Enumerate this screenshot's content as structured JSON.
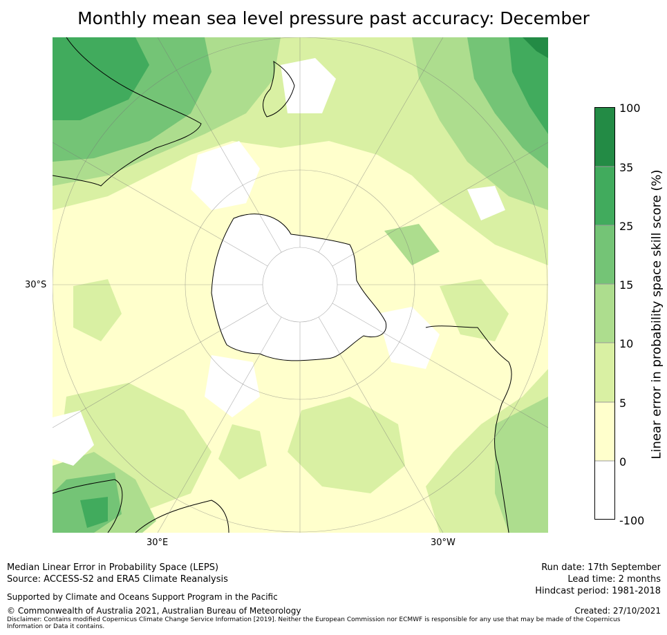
{
  "title": "Monthly mean sea level pressure past accuracy: December",
  "map_labels": {
    "lat_30s": "30°S",
    "lon_30e": "30°E",
    "lon_30w": "30°W"
  },
  "colorbar": {
    "title": "Linear error in probability space skill score (%)",
    "ticks": [
      "100",
      "35",
      "25",
      "15",
      "10",
      "5",
      "0",
      "-100"
    ],
    "bins": [
      {
        "range": "35 to 100",
        "color": "#238b45"
      },
      {
        "range": "25 to 35",
        "color": "#41ab5d"
      },
      {
        "range": "15 to 25",
        "color": "#74c476"
      },
      {
        "range": "10 to 15",
        "color": "#addd8e"
      },
      {
        "range": "5 to 10",
        "color": "#d9f0a3"
      },
      {
        "range": "0 to 5",
        "color": "#ffffcc"
      },
      {
        "range": "-100 to 0",
        "color": "#ffffff"
      }
    ]
  },
  "footer": {
    "line1": "Median Linear Error in Probability Space (LEPS)",
    "line2": "Source: ACCESS-S2 and ERA5 Climate Reanalysis",
    "support": "Supported by Climate and Oceans Support Program in the Pacific",
    "copyright": "© Commonwealth of Australia 2021, Australian Bureau of Meteorology",
    "disclaimer": "Disclaimer: Contains modified Copernicus Climate Change Service Information [2019]. Neither the European Commission nor ECMWF is responsible for any use that may be made of the Copernicus Information or Data it contains.",
    "run_date": "Run date: 17th September",
    "lead_time": "Lead time: 2 months",
    "hindcast": "Hindcast period: 1981-2018",
    "created": "Created: 27/10/2021"
  }
}
